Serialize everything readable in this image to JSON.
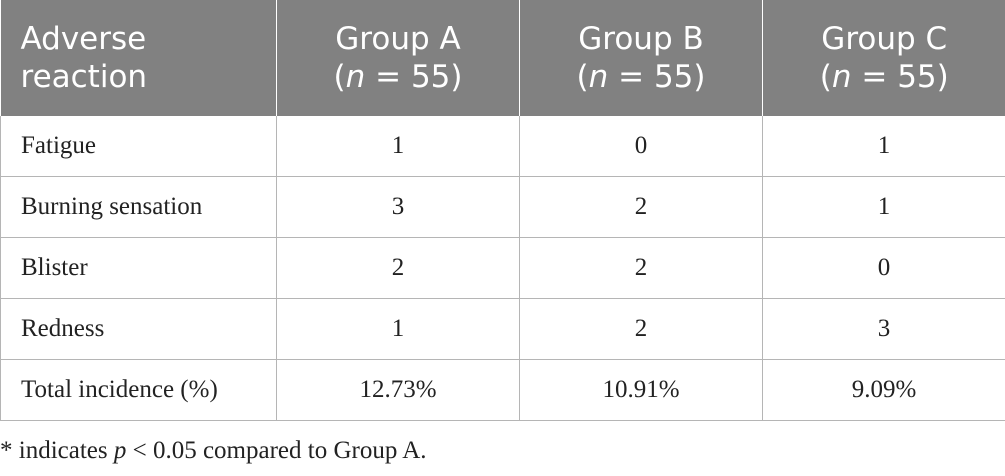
{
  "table": {
    "header": {
      "col0": {
        "line1": "Adverse",
        "line2": "reaction"
      },
      "groups": [
        {
          "name": "Group A",
          "n_prefix": "(",
          "n_symbol": "n",
          "n_suffix": " = 55)"
        },
        {
          "name": "Group B",
          "n_prefix": "(",
          "n_symbol": "n",
          "n_suffix": " = 55)"
        },
        {
          "name": "Group C",
          "n_prefix": "(",
          "n_symbol": "n",
          "n_suffix": " = 55)"
        }
      ]
    },
    "rows": [
      {
        "label": "Fatigue",
        "values": [
          "1",
          "0",
          "1"
        ]
      },
      {
        "label": "Burning sensation",
        "values": [
          "3",
          "2",
          "1"
        ]
      },
      {
        "label": "Blister",
        "values": [
          "2",
          "2",
          "0"
        ]
      },
      {
        "label": "Redness",
        "values": [
          "1",
          "2",
          "3"
        ]
      },
      {
        "label": "Total incidence (%)",
        "values": [
          "12.73%",
          "10.91%",
          "9.09%"
        ]
      }
    ]
  },
  "footnote": {
    "prefix": "* indicates ",
    "symbol": "p",
    "suffix": " < 0.05 compared to Group A."
  }
}
